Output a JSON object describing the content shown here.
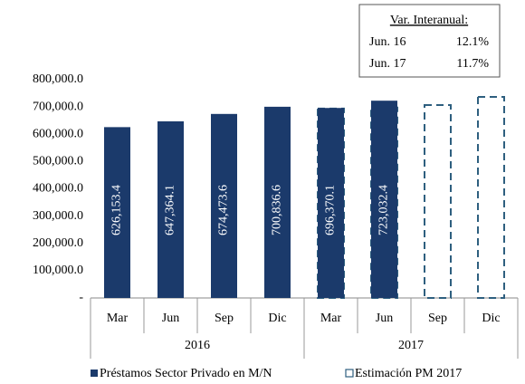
{
  "chart_data": {
    "type": "bar",
    "categories": [
      "Mar",
      "Jun",
      "Sep",
      "Dic",
      "Mar",
      "Jun",
      "Sep",
      "Dic"
    ],
    "years": [
      "2016",
      "2017"
    ],
    "series": [
      {
        "name": "Préstamos Sector Privado en M/N",
        "color": "#1b3a6b",
        "style": "solid",
        "values": [
          626153.4,
          647364.1,
          674473.6,
          700836.6,
          696370.1,
          723032.4,
          null,
          null
        ],
        "value_labels": [
          "626,153.4",
          "647,364.1",
          "674,473.6",
          "700,836.6",
          "696,370.1",
          "723,032.4",
          null,
          null
        ]
      },
      {
        "name": "Estimación PM 2017",
        "color": "#2e5f7f",
        "style": "dashed",
        "values": [
          null,
          null,
          null,
          null,
          694000,
          698000,
          707000,
          737000
        ]
      }
    ],
    "ylim": [
      0,
      800000
    ],
    "yticks": [
      {
        "value": 0,
        "label": "-"
      },
      {
        "value": 100000,
        "label": "100,000.0"
      },
      {
        "value": 200000,
        "label": "200,000.0"
      },
      {
        "value": 300000,
        "label": "300,000.0"
      },
      {
        "value": 400000,
        "label": "400,000.0"
      },
      {
        "value": 500000,
        "label": "500,000.0"
      },
      {
        "value": 600000,
        "label": "600,000.0"
      },
      {
        "value": 700000,
        "label": "700,000.0"
      },
      {
        "value": 800000,
        "label": "800,000.0"
      }
    ],
    "annotation": {
      "title": "Var. Interanual:",
      "lines": [
        [
          "Jun. 16",
          "12.1%"
        ],
        [
          "Jun. 17",
          "11.7%"
        ]
      ]
    },
    "legend": "bottom"
  }
}
